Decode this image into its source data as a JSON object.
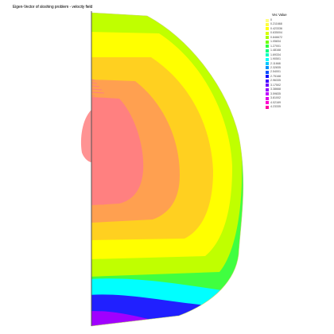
{
  "title": "Eigen-Vector of sloshing problem - velocity field",
  "legend": {
    "title": "Vec Value",
    "entries": [
      {
        "label": "0",
        "color": "#ffff80"
      },
      {
        "label": "0.211668",
        "color": "#ffff40"
      },
      {
        "label": "0.423336",
        "color": "#ffff00"
      },
      {
        "label": "0.635004",
        "color": "#d8ff00"
      },
      {
        "label": "0.846672",
        "color": "#a8ff00"
      },
      {
        "label": "1.05834",
        "color": "#70ff00"
      },
      {
        "label": "1.27001",
        "color": "#30ff40"
      },
      {
        "label": "1.48168",
        "color": "#00ff80"
      },
      {
        "label": "1.69334",
        "color": "#00ffc0"
      },
      {
        "label": "1.90501",
        "color": "#00ffff"
      },
      {
        "label": "2.11668",
        "color": "#00c8ff"
      },
      {
        "label": "2.32835",
        "color": "#0090ff"
      },
      {
        "label": "2.54001",
        "color": "#0050ff"
      },
      {
        "label": "2.75168",
        "color": "#1010ff"
      },
      {
        "label": "2.96335",
        "color": "#4000ff"
      },
      {
        "label": "3.17502",
        "color": "#7000ff"
      },
      {
        "label": "3.38668",
        "color": "#9800ff"
      },
      {
        "label": "3.59835",
        "color": "#c000ff"
      },
      {
        "label": "3.81002",
        "color": "#e000e8"
      },
      {
        "label": "4.02169",
        "color": "#ff00d0"
      },
      {
        "label": "4.23335",
        "color": "#ff00a0"
      }
    ]
  },
  "chart_data": {
    "type": "heatmap",
    "title": "Eigen-Vector of sloshing problem - velocity field",
    "colorbar_label": "Vec Value",
    "colorbar_values": [
      0,
      0.211668,
      0.423336,
      0.635004,
      0.846672,
      1.05834,
      1.27001,
      1.48168,
      1.69334,
      1.90501,
      2.11668,
      2.32835,
      2.54001,
      2.75168,
      2.96335,
      3.17502,
      3.38668,
      3.59835,
      3.81002,
      4.02169,
      4.23335
    ],
    "colors": {
      "salmon": "#ff8080",
      "orange": "#ffa050",
      "gold": "#ffd020",
      "yellow": "#ffff00",
      "lime": "#c0ff00",
      "green": "#40ff40",
      "cyan": "#00ffff",
      "blue": "#2020ff",
      "violet": "#a000ff"
    }
  }
}
